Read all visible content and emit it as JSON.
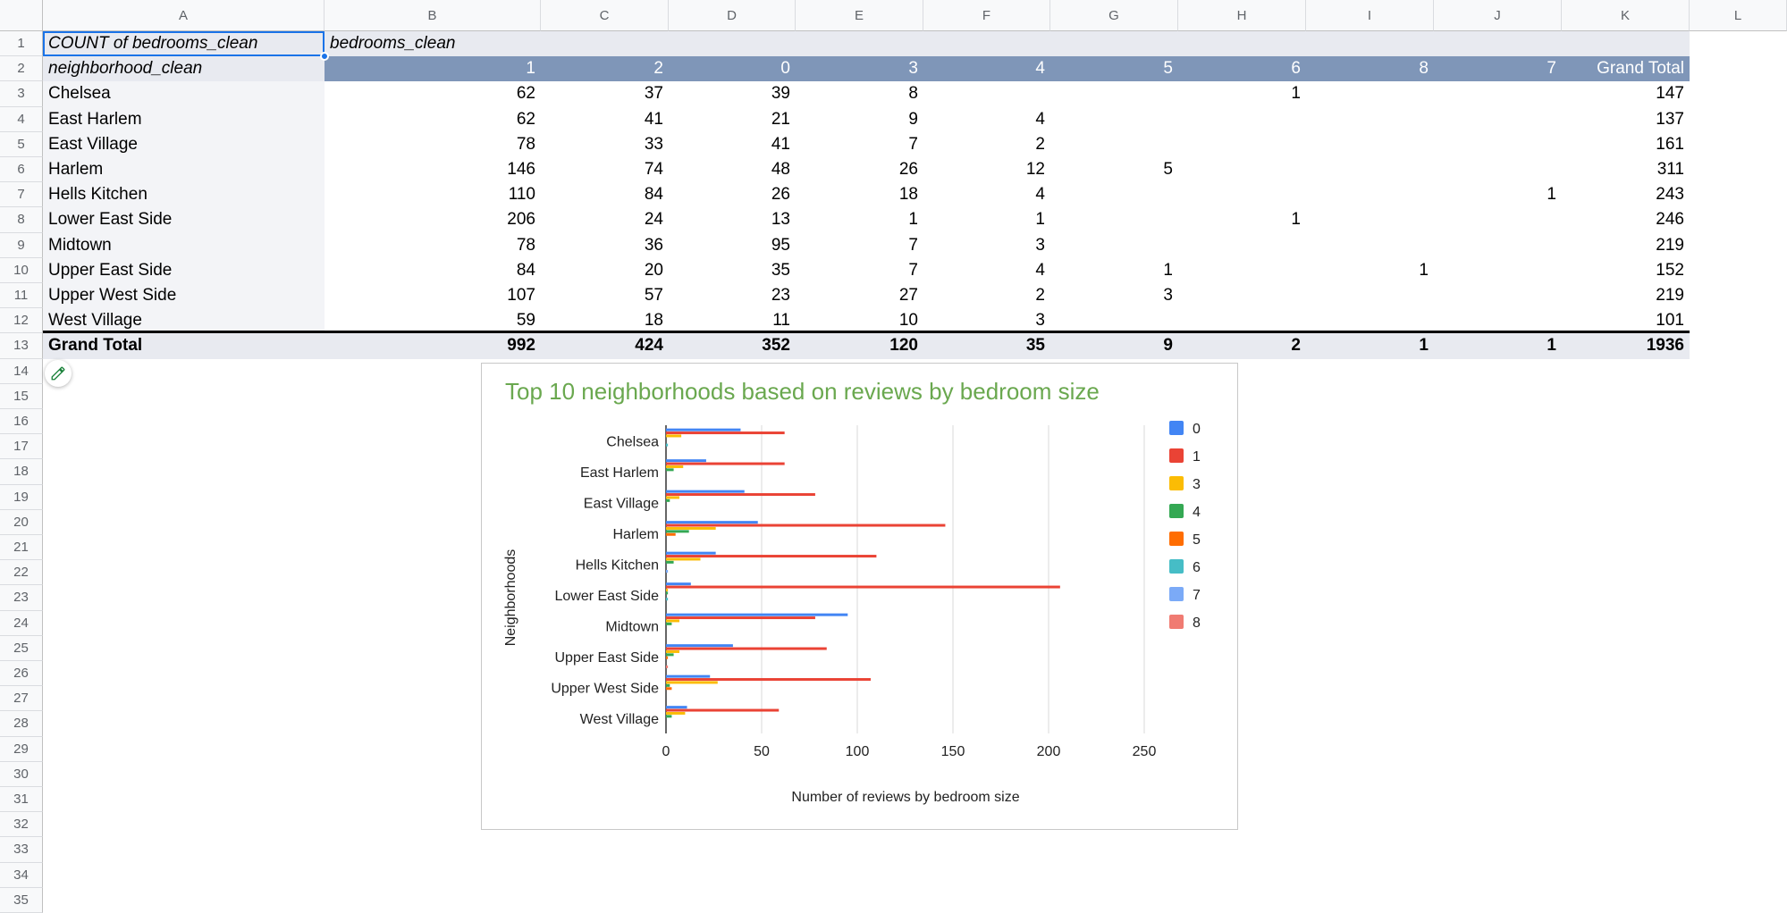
{
  "columns": [
    "A",
    "B",
    "C",
    "D",
    "E",
    "F",
    "G",
    "H",
    "I",
    "J",
    "K",
    "L"
  ],
  "rows": [
    "1",
    "2",
    "3",
    "4",
    "5",
    "6",
    "7",
    "8",
    "9",
    "10",
    "11",
    "12",
    "13",
    "14",
    "15",
    "16",
    "17",
    "18",
    "19",
    "20",
    "21",
    "22",
    "23",
    "24",
    "25",
    "26",
    "27",
    "28",
    "29",
    "30",
    "31",
    "32",
    "33",
    "34",
    "35"
  ],
  "pivot": {
    "corner_label": "COUNT of bedrooms_clean",
    "col_field": "bedrooms_clean",
    "row_field": "neighborhood_clean",
    "headers": [
      "1",
      "2",
      "0",
      "3",
      "4",
      "5",
      "6",
      "8",
      "7",
      "Grand Total"
    ],
    "body": [
      {
        "name": "Chelsea",
        "values": [
          "62",
          "37",
          "39",
          "8",
          "",
          "",
          "1",
          "",
          "",
          "147"
        ]
      },
      {
        "name": "East Harlem",
        "values": [
          "62",
          "41",
          "21",
          "9",
          "4",
          "",
          "",
          "",
          "",
          "137"
        ]
      },
      {
        "name": "East Village",
        "values": [
          "78",
          "33",
          "41",
          "7",
          "2",
          "",
          "",
          "",
          "",
          "161"
        ]
      },
      {
        "name": "Harlem",
        "values": [
          "146",
          "74",
          "48",
          "26",
          "12",
          "5",
          "",
          "",
          "",
          "311"
        ]
      },
      {
        "name": "Hells Kitchen",
        "values": [
          "110",
          "84",
          "26",
          "18",
          "4",
          "",
          "",
          "",
          "1",
          "243"
        ]
      },
      {
        "name": "Lower East Side",
        "values": [
          "206",
          "24",
          "13",
          "1",
          "1",
          "",
          "1",
          "",
          "",
          "246"
        ]
      },
      {
        "name": "Midtown",
        "values": [
          "78",
          "36",
          "95",
          "7",
          "3",
          "",
          "",
          "",
          "",
          "219"
        ]
      },
      {
        "name": "Upper East Side",
        "values": [
          "84",
          "20",
          "35",
          "7",
          "4",
          "1",
          "",
          "1",
          "",
          "152"
        ]
      },
      {
        "name": "Upper West Side",
        "values": [
          "107",
          "57",
          "23",
          "27",
          "2",
          "3",
          "",
          "",
          "",
          "219"
        ]
      },
      {
        "name": "West Village",
        "values": [
          "59",
          "18",
          "11",
          "10",
          "3",
          "",
          "",
          "",
          "",
          "101"
        ]
      }
    ],
    "total": {
      "name": "Grand Total",
      "values": [
        "992",
        "424",
        "352",
        "120",
        "35",
        "9",
        "2",
        "1",
        "1",
        "1936"
      ]
    }
  },
  "colors": {
    "header_band": "#7f96b8",
    "label_band": "#e8eaf0",
    "selection": "#1a73e8",
    "title": "#6aa84f"
  },
  "icons": {
    "edit": "pencil-icon"
  },
  "chart_data": {
    "type": "bar",
    "orientation": "horizontal",
    "title": "Top 10 neighborhoods based on reviews by bedroom size",
    "xlabel": "Number of reviews by bedroom size",
    "ylabel": "Neighborhoods",
    "xlim": [
      0,
      250
    ],
    "xticks": [
      0,
      50,
      100,
      150,
      200,
      250
    ],
    "grid": true,
    "legend": "right",
    "categories": [
      "Chelsea",
      "East Harlem",
      "East Village",
      "Harlem",
      "Hells Kitchen",
      "Lower East Side",
      "Midtown",
      "Upper East Side",
      "Upper West Side",
      "West Village"
    ],
    "series": [
      {
        "name": "0",
        "color": "#4285f4",
        "values": [
          39,
          21,
          41,
          48,
          26,
          13,
          95,
          35,
          23,
          11
        ]
      },
      {
        "name": "1",
        "color": "#ea4335",
        "values": [
          62,
          62,
          78,
          146,
          110,
          206,
          78,
          84,
          107,
          59
        ]
      },
      {
        "name": "3",
        "color": "#fbbc04",
        "values": [
          8,
          9,
          7,
          26,
          18,
          1,
          7,
          7,
          27,
          10
        ]
      },
      {
        "name": "4",
        "color": "#34a853",
        "values": [
          0,
          4,
          2,
          12,
          4,
          1,
          3,
          4,
          2,
          3
        ]
      },
      {
        "name": "5",
        "color": "#ff6d01",
        "values": [
          0,
          0,
          0,
          5,
          0,
          0,
          0,
          1,
          3,
          0
        ]
      },
      {
        "name": "6",
        "color": "#46bdc6",
        "values": [
          1,
          0,
          0,
          0,
          0,
          1,
          0,
          0,
          0,
          0
        ]
      },
      {
        "name": "7",
        "color": "#7baaf7",
        "values": [
          0,
          0,
          0,
          0,
          1,
          0,
          0,
          0,
          0,
          0
        ]
      },
      {
        "name": "8",
        "color": "#f07b72",
        "values": [
          0,
          0,
          0,
          0,
          0,
          0,
          0,
          1,
          0,
          0
        ]
      }
    ]
  }
}
